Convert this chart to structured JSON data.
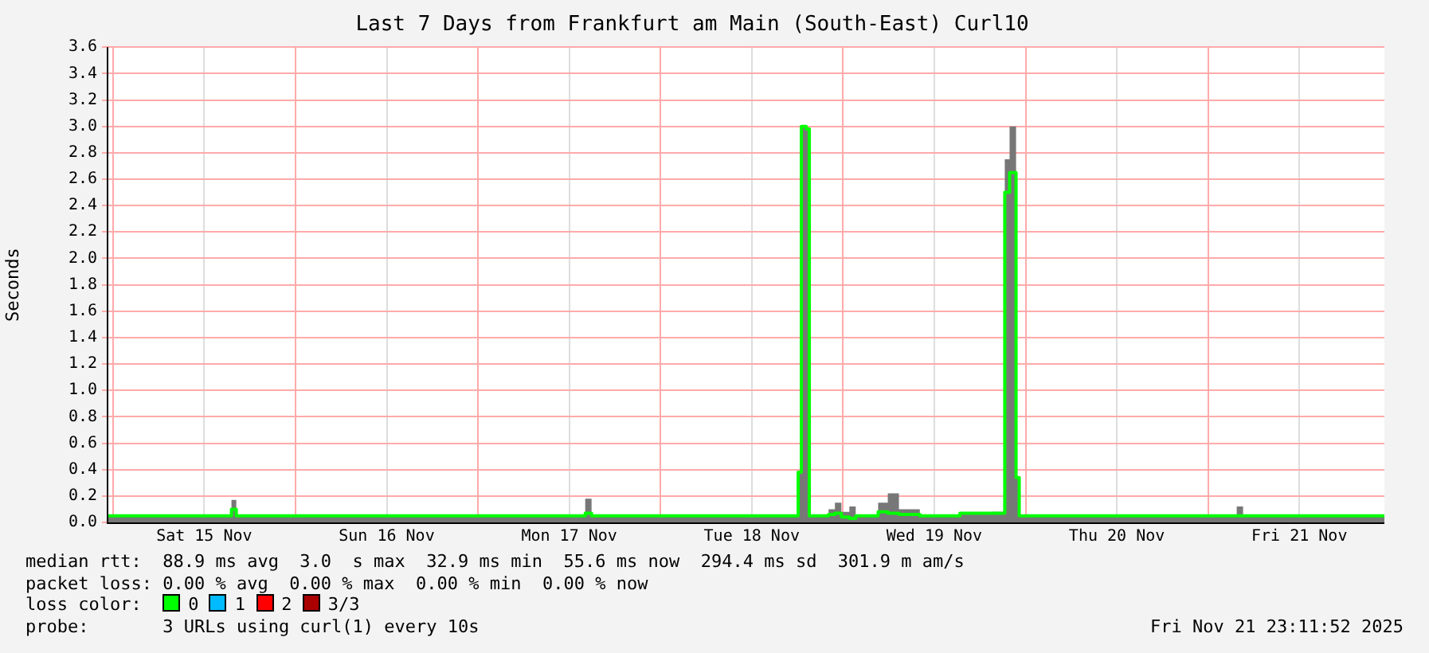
{
  "chart_data": {
    "type": "step",
    "title": "Last 7 Days from Frankfurt am Main (South-East) Curl10",
    "ylabel": "Seconds",
    "x": [
      "2025-11-14T23:11",
      "2025-11-15T14:31",
      "2025-11-15T15:35",
      "2025-11-15T16:13",
      "2025-11-16T09:54",
      "2025-11-17T13:41",
      "2025-11-17T14:06",
      "2025-11-17T14:56",
      "2025-11-18T16:12",
      "2025-11-18T18:06",
      "2025-11-18T18:31",
      "2025-11-18T19:09",
      "2025-11-18T19:34",
      "2025-11-18T22:06",
      "2025-11-18T22:56",
      "2025-11-18T23:47",
      "2025-11-19T00:50",
      "2025-11-19T01:40",
      "2025-11-19T04:37",
      "2025-11-19T05:53",
      "2025-11-19T07:21",
      "2025-11-19T10:06",
      "2025-11-19T15:22",
      "2025-11-19T19:35",
      "2025-11-19T21:16",
      "2025-11-19T21:54",
      "2025-11-19T22:45",
      "2025-11-19T23:10",
      "2025-11-20T10:18",
      "2025-11-21T03:46",
      "2025-11-21T04:36",
      "2025-11-21T23:11"
    ],
    "series": [
      {
        "type": "area",
        "color": "#777777",
        "values": [
          0.05,
          0.05,
          0.05,
          0.17,
          0.05,
          0.05,
          0.05,
          0.18,
          0.05,
          0.05,
          0.38,
          3.0,
          2.98,
          0.05,
          0.1,
          0.15,
          0.08,
          0.12,
          0.05,
          0.15,
          0.22,
          0.1,
          0.05,
          0.07,
          0.08,
          2.75,
          3.0,
          0.34,
          0.05,
          0.05,
          0.12,
          0.05
        ]
      },
      {
        "color": "#00ff00",
        "values": [
          0.05,
          0.05,
          0.05,
          0.1,
          0.05,
          0.05,
          0.05,
          0.07,
          0.05,
          0.05,
          0.38,
          3.0,
          2.98,
          0.05,
          0.06,
          0.07,
          0.04,
          0.03,
          0.05,
          0.08,
          0.07,
          0.06,
          0.05,
          0.07,
          0.07,
          2.5,
          2.65,
          0.34,
          0.05,
          0.05,
          0.05,
          0.05
        ]
      }
    ],
    "xlim": [
      "2025-11-14T23:11",
      "2025-11-21T23:11"
    ],
    "xticks": [
      {
        "value": "2025-11-15T00:00",
        "label": null
      },
      {
        "value": "2025-11-15T12:00",
        "label": "Sat 15 Nov"
      },
      {
        "value": "2025-11-16T00:00",
        "label": null
      },
      {
        "value": "2025-11-16T12:00",
        "label": "Sun 16 Nov"
      },
      {
        "value": "2025-11-17T00:00",
        "label": null
      },
      {
        "value": "2025-11-17T12:00",
        "label": "Mon 17 Nov"
      },
      {
        "value": "2025-11-18T00:00",
        "label": null
      },
      {
        "value": "2025-11-18T12:00",
        "label": "Tue 18 Nov"
      },
      {
        "value": "2025-11-19T00:00",
        "label": null
      },
      {
        "value": "2025-11-19T12:00",
        "label": "Wed 19 Nov"
      },
      {
        "value": "2025-11-20T00:00",
        "label": null
      },
      {
        "value": "2025-11-20T12:00",
        "label": "Thu 20 Nov"
      },
      {
        "value": "2025-11-21T00:00",
        "label": null
      },
      {
        "value": "2025-11-21T12:00",
        "label": "Fri 21 Nov"
      }
    ],
    "ylim": [
      0,
      3.6
    ],
    "yticks": [
      {
        "value": 0,
        "label": "0.0"
      },
      0.2,
      0.4,
      0.6,
      0.8,
      {
        "value": 1,
        "label": "1.0"
      },
      1.2,
      1.4,
      1.6,
      1.8,
      {
        "value": 2,
        "label": "2.0"
      },
      2.2,
      2.4,
      2.6,
      2.8,
      {
        "value": 3,
        "label": "3.0"
      },
      3.2,
      3.4,
      3.6
    ],
    "grid": true,
    "legend": false,
    "marker": "none",
    "annotations": [
      "median rtt:  88.9 ms avg  3.0  s max  32.9 ms min  55.6 ms now  294.4 ms sd  301.9 m am/s",
      "packet loss: 0.00 % avg  0.00 % max  0.00 % min  0.00 % now",
      "loss color:  0  1  2  3/3",
      "probe:       3 URLs using curl(1) every 10s",
      "Fri Nov 21 23:11:52 2025"
    ]
  }
}
